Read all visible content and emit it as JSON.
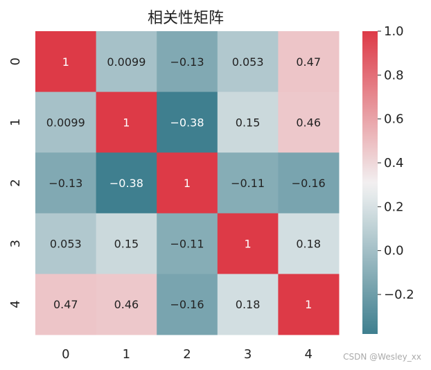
{
  "watermark": "CSDN @Wesley_xx",
  "chart_data": {
    "type": "heatmap",
    "title": "相关性矩阵",
    "x_categories": [
      "0",
      "1",
      "2",
      "3",
      "4"
    ],
    "y_categories": [
      "0",
      "1",
      "2",
      "3",
      "4"
    ],
    "values": [
      [
        1,
        0.0099,
        -0.13,
        0.053,
        0.47
      ],
      [
        0.0099,
        1,
        -0.38,
        0.15,
        0.46
      ],
      [
        -0.13,
        -0.38,
        1,
        -0.11,
        -0.16
      ],
      [
        0.053,
        0.15,
        -0.11,
        1,
        0.18
      ],
      [
        0.47,
        0.46,
        -0.16,
        0.18,
        1
      ]
    ],
    "labels": [
      [
        "1",
        "0.0099",
        "−0.13",
        "0.053",
        "0.47"
      ],
      [
        "0.0099",
        "1",
        "−0.38",
        "0.15",
        "0.46"
      ],
      [
        "−0.13",
        "−0.38",
        "1",
        "−0.11",
        "−0.16"
      ],
      [
        "0.053",
        "0.15",
        "−0.11",
        "1",
        "0.18"
      ],
      [
        "0.47",
        "0.46",
        "−0.16",
        "0.18",
        "1"
      ]
    ],
    "colorbar": {
      "vmin": -0.38,
      "vmax": 1.0,
      "ticks": [
        1.0,
        0.8,
        0.6,
        0.4,
        0.2,
        0.0,
        -0.2
      ],
      "tick_labels": [
        "1.0",
        "0.8",
        "0.6",
        "0.4",
        "0.2",
        "0.0",
        "−0.2"
      ],
      "low_color": "#3f7f8f",
      "mid_color": "#f2f2f2",
      "high_color": "#dd3a47"
    },
    "grid": false
  }
}
